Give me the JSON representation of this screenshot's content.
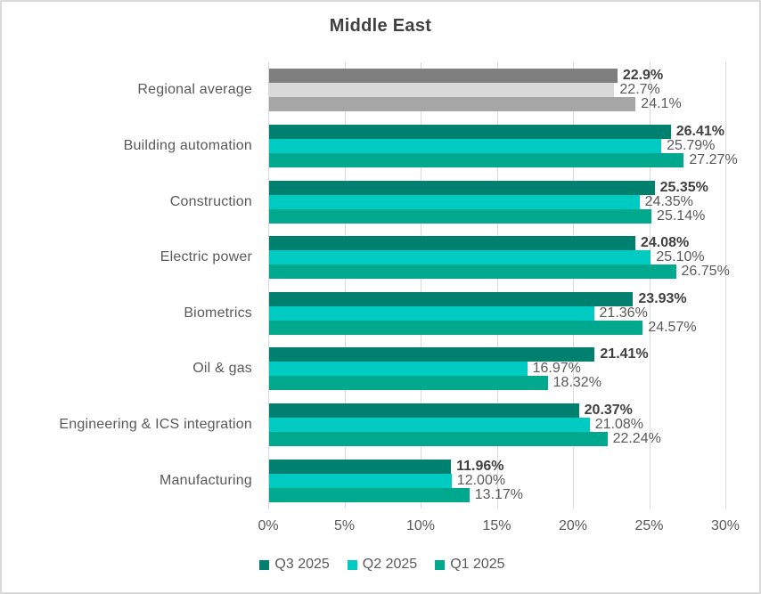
{
  "title": "Middle East",
  "colors": {
    "grid": "#D9D9D9",
    "frame_border": "#D9D9D9",
    "background": "#FFFFFF",
    "title_text": "#404040",
    "category_text": "#595959",
    "tick_text": "#595959",
    "data_label_bold": "#404040",
    "data_label_regular": "#595959"
  },
  "chart_data": {
    "type": "bar",
    "orientation": "horizontal",
    "title": "Middle East",
    "grid": true,
    "legend_position": "bottom",
    "xlim": [
      0,
      30
    ],
    "x_ticks": [
      "0%",
      "5%",
      "10%",
      "15%",
      "20%",
      "25%",
      "30%"
    ],
    "categories": [
      "Regional average",
      "Building automation",
      "Construction",
      "Electric power",
      "Biometrics",
      "Oil & gas",
      "Engineering & ICS integration",
      "Manufacturing"
    ],
    "regional_category_index": 0,
    "series": [
      {
        "name": "Q3 2025",
        "color": "#00806F",
        "regional_color": "#7F7F7F",
        "bold_labels": true,
        "values": [
          22.9,
          26.41,
          25.35,
          24.08,
          23.93,
          21.41,
          20.37,
          11.96
        ],
        "labels": [
          "22.9%",
          "26.41%",
          "25.35%",
          "24.08%",
          "23.93%",
          "21.41%",
          "20.37%",
          "11.96%"
        ]
      },
      {
        "name": "Q2 2025",
        "color": "#00CBC3",
        "regional_color": "#D9D9D9",
        "bold_labels": false,
        "values": [
          22.7,
          25.79,
          24.35,
          25.1,
          21.36,
          16.97,
          21.08,
          12.0
        ],
        "labels": [
          "22.7%",
          "25.79%",
          "24.35%",
          "25.10%",
          "21.36%",
          "16.97%",
          "21.08%",
          "12.00%"
        ]
      },
      {
        "name": "Q1 2025",
        "color": "#00A88E",
        "regional_color": "#A6A6A6",
        "bold_labels": false,
        "values": [
          24.1,
          27.27,
          25.14,
          26.75,
          24.57,
          18.32,
          22.24,
          13.17
        ],
        "labels": [
          "24.1%",
          "27.27%",
          "25.14%",
          "26.75%",
          "24.57%",
          "18.32%",
          "22.24%",
          "13.17%"
        ]
      }
    ]
  }
}
